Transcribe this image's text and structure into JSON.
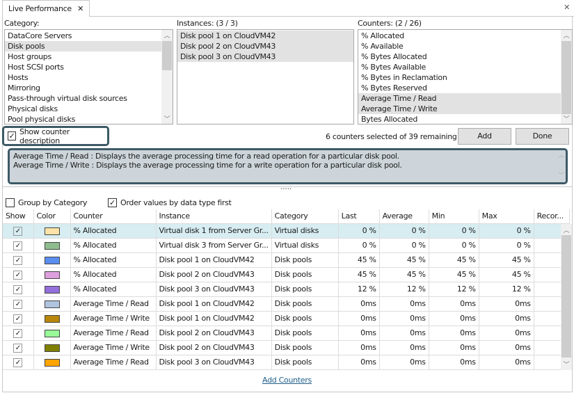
{
  "tab": {
    "title": "Live Performance",
    "close": "✕"
  },
  "window_close": "✕",
  "category": {
    "label": "Category:",
    "items": [
      "DataCore Servers",
      "Disk pools",
      "Host groups",
      "Host SCSI ports",
      "Hosts",
      "Mirroring",
      "Pass-through virtual disk sources",
      "Physical disks",
      "Pool physical disks"
    ],
    "selected": "Disk pools"
  },
  "instances": {
    "label": "Instances: (3 / 3)",
    "items": [
      "Disk pool 1 on CloudVM42",
      "Disk pool 2 on CloudVM43",
      "Disk pool 3 on CloudVM43"
    ]
  },
  "counters": {
    "label": "Counters: (2 / 26)",
    "items": [
      "% Allocated",
      "% Available",
      "% Bytes Allocated",
      "% Bytes Available",
      "% Bytes in Reclamation",
      "% Bytes Reserved",
      "Average Time / Read",
      "Average Time / Write",
      "Bytes Allocated"
    ],
    "selected": [
      "Average Time / Read",
      "Average Time / Write"
    ]
  },
  "show_description": {
    "label": "Show counter description",
    "checked": true
  },
  "status": "6 counters selected of 39 remaining",
  "buttons": {
    "add": "Add",
    "done": "Done"
  },
  "description": [
    "Average Time / Read : Displays the average processing time for a read operation for a particular disk pool.",
    "Average Time / Write : Displays the average processing time for a write operation for a particular disk pool."
  ],
  "splitter": ".....",
  "options": {
    "group_by_category": {
      "label": "Group by Category",
      "checked": false
    },
    "order_values": {
      "label": "Order values by data type first",
      "checked": true
    }
  },
  "table": {
    "columns": [
      "Show",
      "Color",
      "Counter",
      "Instance",
      "Category",
      "Last",
      "Average",
      "Min",
      "Max",
      "Recor..."
    ],
    "rows": [
      {
        "show": true,
        "color": "#fde3a7",
        "counter": "% Allocated",
        "instance": "Virtual disk 1 from Server Gr...",
        "category": "Virtual disks",
        "last": "0 %",
        "average": "0 %",
        "min": "0 %",
        "max": "0 %",
        "recor": ""
      },
      {
        "show": true,
        "color": "#8fbc8f",
        "counter": "% Allocated",
        "instance": "Virtual disk 3 from Server Gr...",
        "category": "Virtual disks",
        "last": "0 %",
        "average": "0 %",
        "min": "0 %",
        "max": "0 %",
        "recor": ""
      },
      {
        "show": true,
        "color": "#5b8def",
        "counter": "% Allocated",
        "instance": "Disk pool 1 on CloudVM42",
        "category": "Disk pools",
        "last": "45 %",
        "average": "45 %",
        "min": "45 %",
        "max": "45 %",
        "recor": ""
      },
      {
        "show": true,
        "color": "#dda0dd",
        "counter": "% Allocated",
        "instance": "Disk pool 2 on CloudVM43",
        "category": "Disk pools",
        "last": "45 %",
        "average": "45 %",
        "min": "45 %",
        "max": "45 %",
        "recor": ""
      },
      {
        "show": true,
        "color": "#9370db",
        "counter": "% Allocated",
        "instance": "Disk pool 3 on CloudVM43",
        "category": "Disk pools",
        "last": "12 %",
        "average": "12 %",
        "min": "12 %",
        "max": "12 %",
        "recor": ""
      },
      {
        "show": true,
        "color": "#b0c4de",
        "counter": "Average Time / Read",
        "instance": "Disk pool 1 on CloudVM42",
        "category": "Disk pools",
        "last": "0ms",
        "average": "0ms",
        "min": "0ms",
        "max": "0ms",
        "recor": ""
      },
      {
        "show": true,
        "color": "#b8860b",
        "counter": "Average Time / Write",
        "instance": "Disk pool 1 on CloudVM42",
        "category": "Disk pools",
        "last": "0ms",
        "average": "0ms",
        "min": "0ms",
        "max": "0ms",
        "recor": ""
      },
      {
        "show": true,
        "color": "#98fb98",
        "counter": "Average Time / Read",
        "instance": "Disk pool 2 on CloudVM43",
        "category": "Disk pools",
        "last": "0ms",
        "average": "0ms",
        "min": "0ms",
        "max": "0ms",
        "recor": ""
      },
      {
        "show": true,
        "color": "#808000",
        "counter": "Average Time / Write",
        "instance": "Disk pool 2 on CloudVM43",
        "category": "Disk pools",
        "last": "0ms",
        "average": "0ms",
        "min": "0ms",
        "max": "0ms",
        "recor": ""
      },
      {
        "show": true,
        "color": "#ffa500",
        "counter": "Average Time / Read",
        "instance": "Disk pool 3 on CloudVM43",
        "category": "Disk pools",
        "last": "0ms",
        "average": "0ms",
        "min": "0ms",
        "max": "0ms",
        "recor": ""
      }
    ]
  },
  "add_counters_link": "Add Counters",
  "highlight_color": "#3d5a66"
}
